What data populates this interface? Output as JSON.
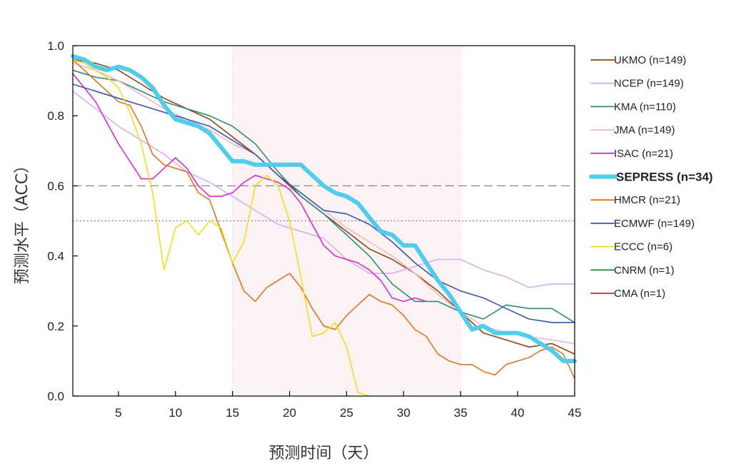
{
  "chart_data": {
    "type": "line",
    "xlabel": "预测时间（天）",
    "ylabel": "预测水平（ACC）",
    "xlim": [
      1,
      45
    ],
    "ylim": [
      0,
      1.0
    ],
    "xticks": [
      5,
      10,
      15,
      20,
      25,
      30,
      35,
      40,
      45
    ],
    "yticks": [
      0.0,
      0.2,
      0.4,
      0.6,
      0.8,
      1.0
    ],
    "ytick_labels": [
      "0.0",
      "0.2",
      "0.4",
      "0.6",
      "0.8",
      "1.0"
    ],
    "shaded_region": {
      "x": [
        15,
        35
      ],
      "color": "#fbf3f3"
    },
    "reference_lines": [
      {
        "y": 0.6,
        "style": "dashed"
      },
      {
        "y": 0.5,
        "style": "dotted"
      }
    ],
    "legend_position": "right",
    "series": [
      {
        "name": "UKMO (n=149)",
        "color": "#8b4513",
        "width": 1.6,
        "x": [
          1,
          3,
          5,
          7,
          9,
          11,
          13,
          15,
          17,
          19,
          21,
          23,
          25,
          27,
          29,
          31,
          33,
          35,
          37,
          39,
          41,
          43,
          45
        ],
        "y": [
          0.96,
          0.95,
          0.93,
          0.89,
          0.85,
          0.82,
          0.79,
          0.74,
          0.69,
          0.63,
          0.57,
          0.52,
          0.47,
          0.42,
          0.39,
          0.35,
          0.3,
          0.24,
          0.18,
          0.16,
          0.14,
          0.15,
          0.12
        ]
      },
      {
        "name": "NCEP (n=149)",
        "color": "#d7aef0",
        "width": 1.6,
        "x": [
          1,
          3,
          5,
          7,
          9,
          11,
          13,
          15,
          17,
          19,
          21,
          23,
          25,
          27,
          29,
          31,
          33,
          35,
          37,
          39,
          41,
          43,
          45
        ],
        "y": [
          0.87,
          0.82,
          0.77,
          0.73,
          0.69,
          0.64,
          0.61,
          0.57,
          0.53,
          0.49,
          0.47,
          0.45,
          0.39,
          0.35,
          0.35,
          0.37,
          0.39,
          0.39,
          0.36,
          0.34,
          0.31,
          0.32,
          0.32
        ]
      },
      {
        "name": "KMA (n=110)",
        "color": "#2e8b7a",
        "width": 1.6,
        "x": [
          1,
          3,
          5,
          7,
          9,
          11,
          13,
          15,
          17,
          19,
          21,
          23,
          25,
          27,
          29,
          31,
          33,
          35,
          37,
          39,
          41,
          43,
          45
        ],
        "y": [
          0.93,
          0.91,
          0.9,
          0.87,
          0.84,
          0.82,
          0.8,
          0.77,
          0.72,
          0.64,
          0.57,
          0.52,
          0.46,
          0.4,
          0.32,
          0.27,
          0.27,
          0.24,
          0.22,
          0.26,
          0.25,
          0.25,
          0.21
        ]
      },
      {
        "name": "JMA (n=149)",
        "color": "#f4b6c2",
        "width": 1.6,
        "x": [
          1,
          3,
          5,
          7,
          9,
          11,
          13,
          15,
          17,
          19,
          21,
          23,
          25,
          27,
          29,
          31,
          33,
          35,
          37,
          39,
          41,
          43,
          45
        ],
        "y": [
          0.95,
          0.93,
          0.9,
          0.86,
          0.82,
          0.79,
          0.76,
          0.72,
          0.69,
          0.63,
          0.58,
          0.53,
          0.48,
          0.44,
          0.4,
          0.35,
          0.29,
          0.24,
          0.2,
          0.18,
          0.17,
          0.16,
          0.15
        ]
      },
      {
        "name": "ISAC (n=21)",
        "color": "#d62ad0",
        "width": 1.6,
        "x": [
          1,
          2,
          3,
          4,
          5,
          6,
          7,
          8,
          9,
          10,
          11,
          12,
          13,
          14,
          15,
          16,
          17,
          18,
          19,
          20,
          21,
          22,
          23,
          24,
          25,
          26,
          27,
          28,
          29,
          30,
          31,
          32
        ],
        "y": [
          0.92,
          0.88,
          0.84,
          0.78,
          0.72,
          0.67,
          0.62,
          0.62,
          0.65,
          0.68,
          0.65,
          0.6,
          0.57,
          0.57,
          0.58,
          0.61,
          0.63,
          0.62,
          0.61,
          0.59,
          0.55,
          0.49,
          0.43,
          0.4,
          0.39,
          0.38,
          0.36,
          0.33,
          0.28,
          0.27,
          0.28,
          0.27
        ]
      },
      {
        "name": "SEPRESS (n=34)",
        "color": "#4fcdea",
        "width": 6,
        "bold": true,
        "x": [
          1,
          2,
          3,
          4,
          5,
          6,
          7,
          8,
          9,
          10,
          11,
          12,
          13,
          14,
          15,
          16,
          17,
          18,
          19,
          20,
          21,
          22,
          23,
          24,
          25,
          26,
          27,
          28,
          29,
          30,
          31,
          32,
          33,
          34,
          35,
          36,
          37,
          38,
          39,
          40,
          41,
          42,
          43,
          44,
          45
        ],
        "y": [
          0.97,
          0.96,
          0.94,
          0.93,
          0.94,
          0.93,
          0.91,
          0.88,
          0.83,
          0.79,
          0.78,
          0.77,
          0.75,
          0.71,
          0.67,
          0.67,
          0.66,
          0.66,
          0.66,
          0.66,
          0.66,
          0.63,
          0.6,
          0.58,
          0.57,
          0.55,
          0.51,
          0.47,
          0.46,
          0.43,
          0.43,
          0.38,
          0.33,
          0.29,
          0.24,
          0.19,
          0.2,
          0.18,
          0.18,
          0.18,
          0.17,
          0.15,
          0.13,
          0.1,
          0.1
        ]
      },
      {
        "name": "HMCR (n=21)",
        "color": "#e2731f",
        "width": 1.6,
        "x": [
          1,
          2,
          3,
          4,
          5,
          6,
          7,
          8,
          9,
          10,
          11,
          12,
          13,
          14,
          15,
          16,
          17,
          18,
          19,
          20,
          21,
          22,
          23,
          24,
          25,
          26,
          27,
          28,
          29,
          30,
          31,
          32,
          33,
          34,
          35,
          36,
          37,
          38,
          39,
          40,
          41,
          42,
          43,
          44,
          45
        ],
        "y": [
          0.96,
          0.93,
          0.9,
          0.87,
          0.84,
          0.83,
          0.77,
          0.69,
          0.66,
          0.65,
          0.64,
          0.58,
          0.56,
          0.47,
          0.38,
          0.3,
          0.27,
          0.31,
          0.33,
          0.35,
          0.31,
          0.25,
          0.2,
          0.19,
          0.23,
          0.26,
          0.29,
          0.27,
          0.26,
          0.23,
          0.19,
          0.17,
          0.12,
          0.1,
          0.09,
          0.09,
          0.07,
          0.06,
          0.09,
          0.1,
          0.11,
          0.13,
          0.14,
          0.12,
          0.05
        ]
      },
      {
        "name": "ECMWF (n=149)",
        "color": "#3a56b0",
        "width": 1.6,
        "x": [
          1,
          3,
          5,
          7,
          9,
          11,
          13,
          15,
          17,
          19,
          21,
          23,
          25,
          27,
          29,
          31,
          33,
          35,
          37,
          39,
          41,
          43,
          45
        ],
        "y": [
          0.89,
          0.87,
          0.85,
          0.83,
          0.81,
          0.79,
          0.77,
          0.73,
          0.69,
          0.63,
          0.58,
          0.53,
          0.52,
          0.49,
          0.44,
          0.38,
          0.33,
          0.3,
          0.28,
          0.25,
          0.22,
          0.21,
          0.21
        ]
      },
      {
        "name": "ECCC (n=6)",
        "color": "#f5dc1c",
        "width": 1.6,
        "x": [
          1,
          2,
          3,
          4,
          5,
          6,
          7,
          8,
          9,
          10,
          11,
          12,
          13,
          14,
          15,
          16,
          17,
          18,
          19,
          20,
          21,
          22,
          23,
          24,
          25,
          26,
          27
        ],
        "y": [
          0.96,
          0.95,
          0.93,
          0.91,
          0.88,
          0.81,
          0.72,
          0.58,
          0.36,
          0.48,
          0.5,
          0.46,
          0.5,
          0.48,
          0.38,
          0.44,
          0.6,
          0.63,
          0.6,
          0.5,
          0.34,
          0.17,
          0.18,
          0.21,
          0.14,
          0.01,
          0.0
        ]
      },
      {
        "name": "CNRM (n=1)",
        "color": "#2e8b3a",
        "width": 1.6,
        "x": [],
        "y": []
      },
      {
        "name": "CMA (n=1)",
        "color": "#d62040",
        "width": 1.6,
        "x": [],
        "y": []
      }
    ]
  }
}
